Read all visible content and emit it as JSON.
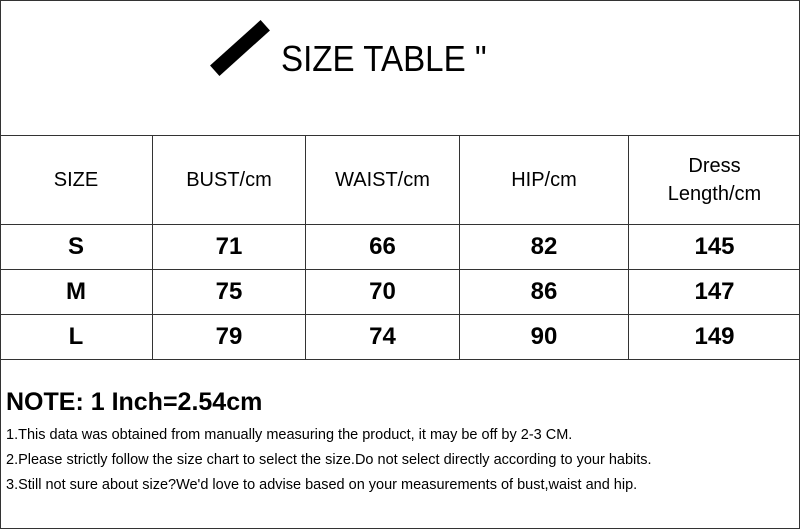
{
  "title": "SIZE TABLE \"",
  "table": {
    "headers": [
      "SIZE",
      "BUST/cm",
      "WAIST/cm",
      "HIP/cm",
      "Dress Length/cm"
    ],
    "rows": [
      [
        "S",
        "71",
        "66",
        "82",
        "145"
      ],
      [
        "M",
        "75",
        "70",
        "86",
        "147"
      ],
      [
        "L",
        "79",
        "74",
        "90",
        "149"
      ]
    ]
  },
  "notes": {
    "title": "NOTE: 1 Inch=2.54cm",
    "items": [
      "1.This data was obtained from manually measuring the product, it may be off by 2-3 CM.",
      "2.Please strictly follow the size chart to select the size.Do not select directly according to your habits.",
      "3.Still not sure about size?We'd love to advise based on your measurements of bust,waist and hip."
    ]
  }
}
